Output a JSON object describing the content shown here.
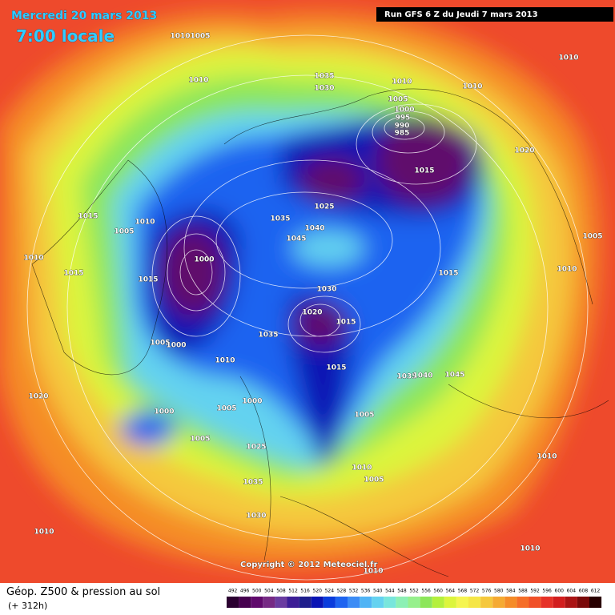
{
  "header": {
    "date": "Mercredi 20 mars 2013",
    "time": "7:00 locale",
    "run": "Run GFS 6 Z du Jeudi 7 mars 2013"
  },
  "copyright": "Copyright © 2012 Meteociel.fr",
  "footer": {
    "title": "Géop. Z500 & pression au sol",
    "lead": "(+ 312h)"
  },
  "colorbar": {
    "labels": [
      "492",
      "496",
      "500",
      "504",
      "508",
      "512",
      "516",
      "520",
      "524",
      "528",
      "532",
      "536",
      "540",
      "544",
      "548",
      "552",
      "556",
      "560",
      "564",
      "568",
      "572",
      "576",
      "580",
      "584",
      "588",
      "592",
      "596",
      "600",
      "604",
      "608",
      "612"
    ],
    "colors": [
      "#2b0030",
      "#46004e",
      "#600a6c",
      "#762a84",
      "#6a3ca0",
      "#3c1e96",
      "#1e1e8c",
      "#0a14b4",
      "#0a3cdc",
      "#1e64f0",
      "#3c8cf5",
      "#50b4f5",
      "#64d2f0",
      "#78e6dc",
      "#8cf0b4",
      "#96f08c",
      "#8ce65a",
      "#b4f03c",
      "#dcf53c",
      "#f5f550",
      "#f5e646",
      "#f5c83c",
      "#f5aa32",
      "#f58c28",
      "#f56e28",
      "#f05028",
      "#e63228",
      "#d21e1e",
      "#aa1414",
      "#7a0a0a",
      "#280000"
    ]
  },
  "map_labels": [
    "1010",
    "1005",
    "1010",
    "1035",
    "1030",
    "1010",
    "1010",
    "1010",
    "1005",
    "1000",
    "995",
    "990",
    "985",
    "1020",
    "1015",
    "1025",
    "1035",
    "1040",
    "1045",
    "1015",
    "1005",
    "1010",
    "1010",
    "1015",
    "1015",
    "1000",
    "1005",
    "1010",
    "1015",
    "1030",
    "1020",
    "1015",
    "1035",
    "1005",
    "1000",
    "1010",
    "1015",
    "1035",
    "1040",
    "1045",
    "1020",
    "1000",
    "1000",
    "1005",
    "1005",
    "1005",
    "1025",
    "1010",
    "1010",
    "1035",
    "1005",
    "1030",
    "1010",
    "1010",
    "1010"
  ]
}
